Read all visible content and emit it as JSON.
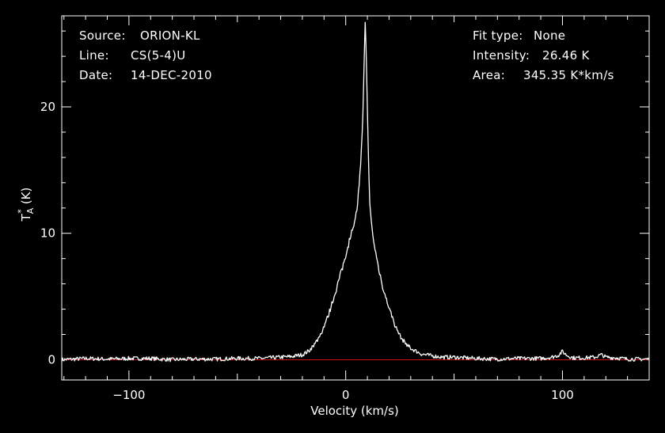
{
  "info_left": [
    {
      "label": "Source:",
      "value": "ORION-KL"
    },
    {
      "label": "Line:",
      "value": "CS(5-4)U"
    },
    {
      "label": "Date:",
      "value": "14-DEC-2010"
    }
  ],
  "info_right": [
    {
      "label": "Fit type:",
      "value": "None"
    },
    {
      "label": "Intensity:",
      "value": "26.46 K"
    },
    {
      "label": "Area:",
      "value": "345.35 K*km/s"
    }
  ],
  "colors": {
    "background": "#000000",
    "axes": "#ffffff",
    "spectrum": "#ffffff",
    "baseline": "#d01010"
  },
  "chart_data": {
    "type": "line",
    "title": "",
    "xlabel": "Velocity (km/s)",
    "ylabel_main": "T",
    "ylabel_sup": "*",
    "ylabel_sub": "A",
    "ylabel_unit": "(K)",
    "xlim": [
      -131,
      140
    ],
    "ylim": [
      -1.6,
      27.2
    ],
    "xticks": [
      -100,
      0,
      100
    ],
    "xtick_labels": [
      "−100",
      "0",
      "100"
    ],
    "yticks": [
      0,
      10,
      20
    ],
    "ytick_labels": [
      "0",
      "10",
      "20"
    ],
    "grid": false,
    "baseline_y": 0,
    "series": [
      {
        "x": [
          -131,
          -120,
          -110,
          -100,
          -90,
          -80,
          -70,
          -60,
          -50,
          -40,
          -30,
          -25,
          -20,
          -17,
          -14,
          -11,
          -8,
          -5,
          -3,
          -1,
          1,
          3,
          5,
          6,
          7,
          8,
          8.5,
          9,
          9.5,
          10,
          10.5,
          11,
          12,
          13,
          15,
          17,
          20,
          23,
          26,
          30,
          35,
          40,
          45,
          50,
          60,
          70,
          80,
          90,
          95,
          98,
          100,
          102,
          105,
          110,
          115,
          118,
          120,
          125,
          130,
          140
        ],
        "y": [
          0,
          0.1,
          0.05,
          0.1,
          0.1,
          0,
          0.05,
          0.05,
          0.1,
          0.1,
          0.2,
          0.25,
          0.4,
          0.7,
          1.3,
          2.2,
          3.5,
          5.2,
          6.4,
          7.6,
          9.0,
          10.2,
          11.6,
          13.3,
          15.5,
          19.5,
          23.5,
          26.46,
          24.5,
          20.0,
          15.5,
          12.6,
          10.6,
          9.2,
          7.4,
          5.8,
          4.1,
          2.6,
          1.6,
          0.9,
          0.45,
          0.3,
          0.2,
          0.2,
          0.1,
          0.05,
          0.1,
          0.1,
          0.2,
          0.35,
          0.65,
          0.35,
          0.15,
          0.15,
          0.2,
          0.4,
          0.2,
          0.15,
          0.05,
          0.05
        ]
      }
    ]
  }
}
